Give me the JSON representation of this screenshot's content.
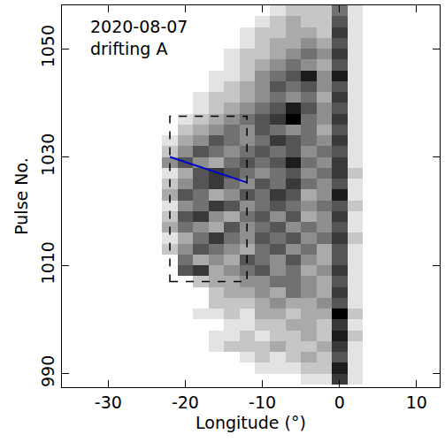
{
  "chart_data": {
    "type": "heatmap",
    "annotation": [
      "2020-08-07",
      "drifting A"
    ],
    "x_label": "Longitude (°)",
    "y_label": "Pulse No.",
    "x": [
      -36,
      -34,
      -32,
      -30,
      -28,
      -26,
      -24,
      -22,
      -20,
      -18,
      -16,
      -14,
      -12,
      -10,
      -8,
      -6,
      -4,
      -2,
      0,
      2,
      4,
      6,
      8,
      10,
      12
    ],
    "y": [
      989,
      991,
      993,
      995,
      997,
      999,
      1001,
      1003,
      1005,
      1007,
      1009,
      1011,
      1013,
      1015,
      1017,
      1019,
      1021,
      1023,
      1025,
      1027,
      1029,
      1031,
      1033,
      1035,
      1037,
      1039,
      1041,
      1043,
      1045,
      1047,
      1049,
      1051,
      1053,
      1055,
      1057
    ],
    "cells": [
      [
        0,
        0,
        0,
        0,
        0,
        0,
        0,
        0,
        0,
        0,
        0,
        0,
        0,
        0,
        0,
        0,
        1,
        1,
        7,
        1,
        0,
        0,
        0,
        0,
        0
      ],
      [
        0,
        0,
        0,
        0,
        0,
        0,
        0,
        0,
        0,
        0,
        0,
        0,
        0,
        1,
        1,
        1,
        2,
        2,
        8,
        1,
        0,
        0,
        0,
        0,
        0
      ],
      [
        0,
        0,
        0,
        0,
        0,
        0,
        0,
        0,
        0,
        0,
        0,
        0,
        1,
        2,
        1,
        2,
        3,
        2,
        6,
        1,
        0,
        0,
        0,
        0,
        0
      ],
      [
        0,
        0,
        0,
        0,
        0,
        0,
        0,
        0,
        0,
        0,
        1,
        2,
        2,
        2,
        3,
        2,
        2,
        3,
        7,
        1,
        0,
        0,
        0,
        0,
        0
      ],
      [
        0,
        0,
        0,
        0,
        0,
        0,
        0,
        0,
        0,
        0,
        1,
        1,
        2,
        1,
        2,
        2,
        3,
        2,
        8,
        2,
        0,
        0,
        0,
        0,
        0
      ],
      [
        0,
        0,
        0,
        0,
        0,
        0,
        0,
        0,
        0,
        0,
        0,
        1,
        1,
        2,
        2,
        3,
        3,
        2,
        7,
        1,
        0,
        0,
        0,
        0,
        0
      ],
      [
        0,
        0,
        0,
        0,
        0,
        0,
        0,
        0,
        0,
        1,
        1,
        2,
        1,
        3,
        3,
        2,
        3,
        3,
        9,
        2,
        0,
        0,
        0,
        0,
        0
      ],
      [
        0,
        0,
        0,
        0,
        0,
        0,
        0,
        0,
        0,
        0,
        2,
        2,
        2,
        3,
        4,
        3,
        3,
        4,
        6,
        1,
        0,
        0,
        0,
        0,
        0
      ],
      [
        0,
        0,
        0,
        0,
        0,
        0,
        0,
        0,
        0,
        0,
        2,
        3,
        3,
        4,
        3,
        5,
        4,
        3,
        7,
        1,
        0,
        0,
        0,
        0,
        0
      ],
      [
        0,
        0,
        0,
        0,
        0,
        0,
        0,
        0,
        0,
        2,
        3,
        3,
        4,
        4,
        5,
        5,
        4,
        3,
        6,
        1,
        0,
        0,
        0,
        0,
        0
      ],
      [
        0,
        0,
        0,
        0,
        0,
        0,
        0,
        0,
        6,
        7,
        3,
        4,
        5,
        6,
        4,
        5,
        3,
        4,
        7,
        1,
        0,
        0,
        0,
        0,
        0
      ],
      [
        0,
        0,
        0,
        0,
        0,
        0,
        0,
        0,
        5,
        3,
        4,
        3,
        6,
        5,
        4,
        6,
        4,
        3,
        6,
        1,
        0,
        0,
        0,
        0,
        0
      ],
      [
        0,
        0,
        0,
        0,
        0,
        0,
        0,
        2,
        4,
        6,
        5,
        4,
        3,
        5,
        6,
        4,
        5,
        3,
        6,
        1,
        0,
        0,
        0,
        0,
        0
      ],
      [
        0,
        0,
        0,
        0,
        0,
        0,
        0,
        1,
        3,
        5,
        7,
        5,
        4,
        6,
        5,
        6,
        4,
        5,
        7,
        2,
        0,
        0,
        0,
        0,
        0
      ],
      [
        0,
        0,
        0,
        0,
        0,
        0,
        0,
        3,
        5,
        4,
        3,
        6,
        4,
        5,
        6,
        4,
        5,
        4,
        6,
        1,
        0,
        0,
        0,
        0,
        0
      ],
      [
        0,
        0,
        0,
        0,
        0,
        0,
        0,
        2,
        6,
        7,
        4,
        3,
        5,
        6,
        4,
        6,
        3,
        4,
        7,
        1,
        0,
        0,
        0,
        0,
        0
      ],
      [
        0,
        0,
        0,
        0,
        0,
        0,
        0,
        1,
        4,
        5,
        7,
        6,
        4,
        5,
        6,
        5,
        4,
        5,
        6,
        2,
        0,
        0,
        0,
        0,
        0
      ],
      [
        0,
        0,
        0,
        0,
        0,
        0,
        0,
        3,
        6,
        5,
        3,
        4,
        6,
        5,
        7,
        6,
        3,
        4,
        8,
        1,
        0,
        0,
        0,
        0,
        0
      ],
      [
        0,
        0,
        0,
        0,
        0,
        0,
        0,
        2,
        4,
        6,
        7,
        5,
        4,
        6,
        5,
        7,
        5,
        4,
        6,
        1,
        0,
        0,
        0,
        0,
        0
      ],
      [
        0,
        0,
        0,
        0,
        0,
        0,
        0,
        1,
        3,
        6,
        7,
        6,
        5,
        4,
        5,
        6,
        4,
        5,
        7,
        2,
        0,
        0,
        0,
        0,
        0
      ],
      [
        0,
        0,
        0,
        0,
        0,
        0,
        0,
        4,
        6,
        4,
        3,
        5,
        6,
        5,
        6,
        8,
        5,
        4,
        7,
        1,
        0,
        0,
        0,
        0,
        0
      ],
      [
        0,
        0,
        0,
        0,
        0,
        0,
        0,
        2,
        4,
        6,
        5,
        4,
        5,
        6,
        5,
        6,
        4,
        5,
        6,
        1,
        0,
        0,
        0,
        0,
        0
      ],
      [
        0,
        0,
        0,
        0,
        0,
        0,
        0,
        1,
        3,
        4,
        6,
        5,
        4,
        5,
        7,
        6,
        5,
        4,
        7,
        1,
        0,
        0,
        0,
        0,
        0
      ],
      [
        0,
        0,
        0,
        0,
        0,
        0,
        0,
        0,
        2,
        3,
        4,
        5,
        4,
        6,
        5,
        4,
        5,
        3,
        6,
        1,
        0,
        0,
        0,
        0,
        0
      ],
      [
        0,
        0,
        0,
        0,
        0,
        0,
        0,
        0,
        1,
        2,
        3,
        4,
        5,
        6,
        7,
        9,
        5,
        4,
        7,
        1,
        0,
        0,
        0,
        0,
        0
      ],
      [
        0,
        0,
        0,
        0,
        0,
        0,
        0,
        0,
        0,
        1,
        2,
        3,
        4,
        5,
        6,
        8,
        6,
        4,
        6,
        1,
        0,
        0,
        0,
        0,
        0
      ],
      [
        0,
        0,
        0,
        0,
        0,
        0,
        0,
        0,
        0,
        1,
        2,
        2,
        3,
        4,
        5,
        4,
        5,
        3,
        7,
        1,
        0,
        0,
        0,
        0,
        0
      ],
      [
        0,
        0,
        0,
        0,
        0,
        0,
        0,
        0,
        0,
        0,
        1,
        2,
        3,
        4,
        6,
        5,
        6,
        4,
        6,
        1,
        0,
        0,
        0,
        0,
        0
      ],
      [
        0,
        0,
        0,
        0,
        0,
        0,
        0,
        0,
        0,
        0,
        1,
        1,
        2,
        4,
        5,
        6,
        8,
        4,
        8,
        1,
        0,
        0,
        0,
        0,
        0
      ],
      [
        0,
        0,
        0,
        0,
        0,
        0,
        0,
        0,
        0,
        0,
        0,
        1,
        2,
        3,
        4,
        5,
        4,
        3,
        6,
        1,
        0,
        0,
        0,
        0,
        0
      ],
      [
        0,
        0,
        0,
        0,
        0,
        0,
        0,
        0,
        0,
        0,
        0,
        1,
        2,
        2,
        3,
        4,
        5,
        4,
        7,
        1,
        0,
        0,
        0,
        0,
        0
      ],
      [
        0,
        0,
        0,
        0,
        0,
        0,
        0,
        0,
        0,
        0,
        0,
        0,
        1,
        2,
        3,
        3,
        4,
        3,
        6,
        1,
        0,
        0,
        0,
        0,
        0
      ],
      [
        0,
        0,
        0,
        0,
        0,
        0,
        0,
        0,
        0,
        0,
        0,
        0,
        1,
        2,
        2,
        3,
        3,
        2,
        7,
        1,
        0,
        0,
        0,
        0,
        0
      ],
      [
        0,
        0,
        0,
        0,
        0,
        0,
        0,
        0,
        0,
        0,
        0,
        0,
        0,
        1,
        2,
        3,
        2,
        2,
        6,
        1,
        0,
        0,
        0,
        0,
        0
      ],
      [
        0,
        0,
        0,
        0,
        0,
        0,
        0,
        0,
        0,
        0,
        0,
        0,
        0,
        0,
        1,
        2,
        2,
        2,
        5,
        1,
        0,
        0,
        0,
        0,
        0
      ]
    ],
    "box": {
      "x": [
        -22,
        -12
      ],
      "y": [
        1007,
        1037.5
      ]
    },
    "drift_line": {
      "x": [
        -22,
        -12
      ],
      "y": [
        1030,
        1025.3
      ],
      "color": "#0000cc"
    },
    "xlim": [
      -36,
      13
    ],
    "ylim": [
      987.5,
      1058
    ],
    "xticks": [
      -30,
      -20,
      -10,
      0,
      10
    ],
    "yticks": [
      990,
      1010,
      1030,
      1050
    ],
    "grid": false
  }
}
